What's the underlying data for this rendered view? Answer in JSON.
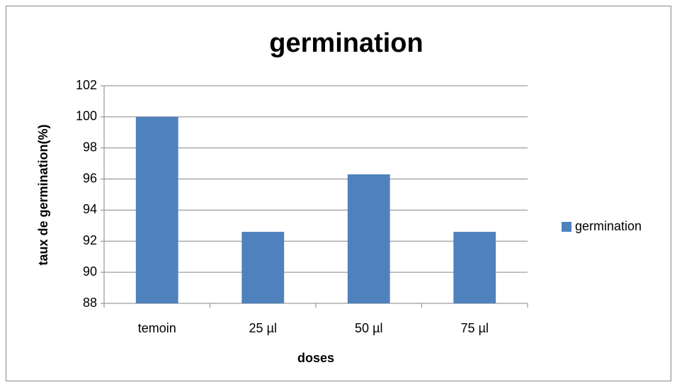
{
  "chart_data": {
    "type": "bar",
    "title": "germination",
    "x_label": "doses",
    "y_label": "taux de germination(%)",
    "categories": [
      "temoin",
      "25 µl",
      "50 µl",
      "75 µl"
    ],
    "series": [
      {
        "name": "germination",
        "color": "#4f81bd",
        "values": [
          100,
          92.6,
          96.3,
          92.6
        ]
      }
    ],
    "ylim": [
      88,
      102
    ],
    "yticks": [
      88,
      90,
      92,
      94,
      96,
      98,
      100,
      102
    ],
    "grid": true,
    "legend": "right"
  }
}
